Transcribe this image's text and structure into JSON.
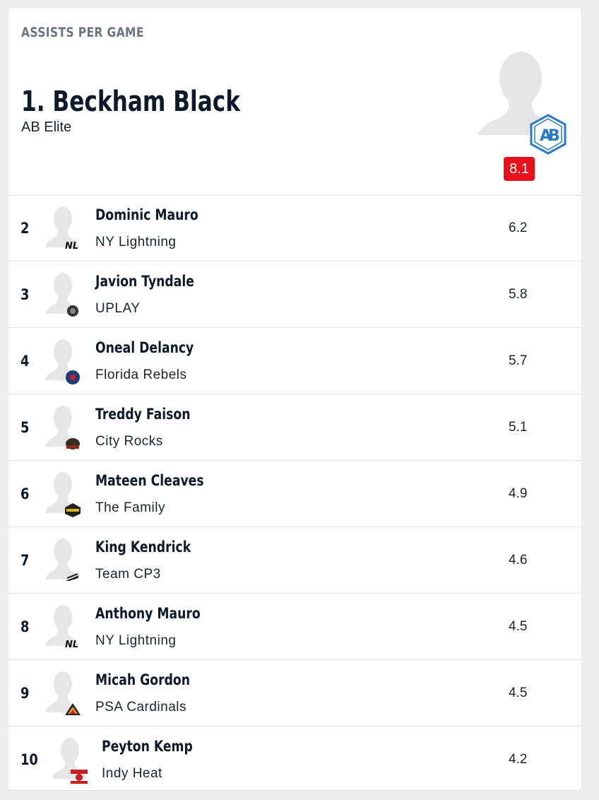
{
  "card": {
    "title": "ASSISTS PER GAME"
  },
  "leader": {
    "name": "1. Beckham Black",
    "team": "AB Elite",
    "value": "8.1",
    "badge_color": "#e8101a"
  },
  "rows": [
    {
      "rank": "2",
      "name": "Dominic Mauro",
      "team": "NY Lightning",
      "value": "6.2",
      "logo": "ny-lightning-logo"
    },
    {
      "rank": "3",
      "name": "Javion Tyndale",
      "team": "UPLAY",
      "value": "5.8",
      "logo": "uplay-logo"
    },
    {
      "rank": "4",
      "name": "Oneal Delancy",
      "team": "Florida Rebels",
      "value": "5.7",
      "logo": "florida-rebels-logo"
    },
    {
      "rank": "5",
      "name": "Treddy Faison",
      "team": "City Rocks",
      "value": "5.1",
      "logo": "city-rocks-logo"
    },
    {
      "rank": "6",
      "name": "Mateen Cleaves",
      "team": "The Family",
      "value": "4.9",
      "logo": "the-family-logo"
    },
    {
      "rank": "7",
      "name": "King Kendrick",
      "team": "Team CP3",
      "value": "4.6",
      "logo": "team-cp3-logo"
    },
    {
      "rank": "8",
      "name": "Anthony Mauro",
      "team": "NY Lightning",
      "value": "4.5",
      "logo": "ny-lightning-logo"
    },
    {
      "rank": "9",
      "name": "Micah Gordon",
      "team": "PSA Cardinals",
      "value": "4.5",
      "logo": "psa-cardinals-logo"
    },
    {
      "rank": "10",
      "name": "Peyton Kemp",
      "team": "Indy Heat",
      "value": "4.2",
      "logo": "indy-heat-logo"
    }
  ]
}
